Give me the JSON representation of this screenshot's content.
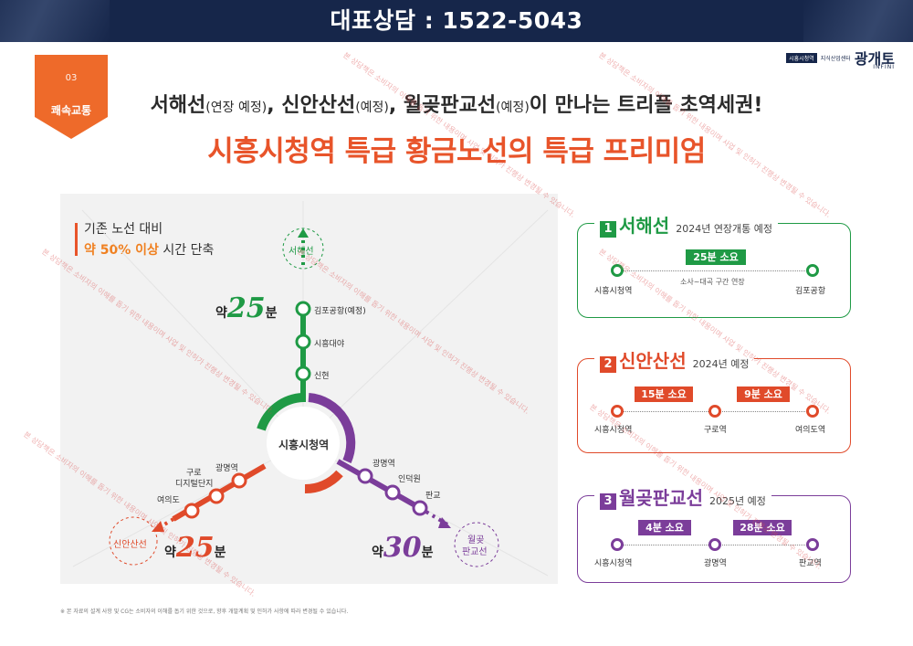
{
  "header": {
    "title": "대표상담 : 1522-5043"
  },
  "logo": {
    "tag": "시흥시청역",
    "tag2": "지식산업센터",
    "brand": "광개토",
    "sub": "INFINI"
  },
  "badge": {
    "number": "03",
    "label": "쾌속교통"
  },
  "headline": {
    "l1_a": "서해선",
    "l1_a_p": "(연장 예정)",
    "l1_b": ", 신안산선",
    "l1_b_p": "(예정)",
    "l1_c": ", 월곶판교선",
    "l1_c_p": "(예정)",
    "l1_d": "이 만나는 트리플 초역세권!",
    "line2": "시흥시청역 특급 황금노선의 특급 프리미엄"
  },
  "map": {
    "legend_line1": "기존 노선 대비",
    "legend_hl": "약 50% 이상",
    "legend_rest": " 시간 단축",
    "center": "시흥시청역",
    "green_end": "서해선",
    "green_stations": [
      "김포공항(예정)",
      "시흥대야",
      "신현"
    ],
    "red_stations": [
      "광명역",
      "구로",
      "디지털단지",
      "여의도"
    ],
    "red_end": "신안산선",
    "purple_stations": [
      "광명역",
      "인덕원",
      "판교"
    ],
    "purple_end_1": "월곶",
    "purple_end_2": "판교선",
    "time_green": {
      "pre": "약",
      "num": "25",
      "suf": "분"
    },
    "time_red": {
      "pre": "약",
      "num": "25",
      "suf": "분"
    },
    "time_purple": {
      "pre": "약",
      "num": "30",
      "suf": "분"
    }
  },
  "cards": [
    {
      "num": "1",
      "name": "서해선",
      "year": "2024년 연장개통 예정",
      "color": "#1f9a45",
      "stations": [
        "시흥시청역",
        "김포공항"
      ],
      "pills": [
        "25분 소요"
      ],
      "note": "소사~대곡 구간 연장"
    },
    {
      "num": "2",
      "name": "신안산선",
      "year": "2024년 예정",
      "color": "#e04a2a",
      "stations": [
        "시흥시청역",
        "구로역",
        "여의도역"
      ],
      "pills": [
        "15분 소요",
        "9분 소요"
      ]
    },
    {
      "num": "3",
      "name": "월곶판교선",
      "year": "2025년 예정",
      "color": "#7b3d9a",
      "stations": [
        "시흥시청역",
        "광명역",
        "판교역"
      ],
      "pills": [
        "4분 소요",
        "28분 소요"
      ]
    }
  ],
  "footnote": "※ 본 자료의 설계 사항 및 CG는 소비자의 이해를 돕기 위한 것으로, 향후 개발계획 및 인허가 사항에 따라 변경될 수 있습니다.",
  "watermark": "본 상담책은 소비자의 이해를 돕기 위한 내용이며 사업 및 인허가 진행상 변경될 수 있습니다.",
  "colors": {
    "navy": "#16264a",
    "orange": "#e8542a",
    "green": "#1f9a45",
    "red": "#e04a2a",
    "purple": "#7b3d9a"
  }
}
